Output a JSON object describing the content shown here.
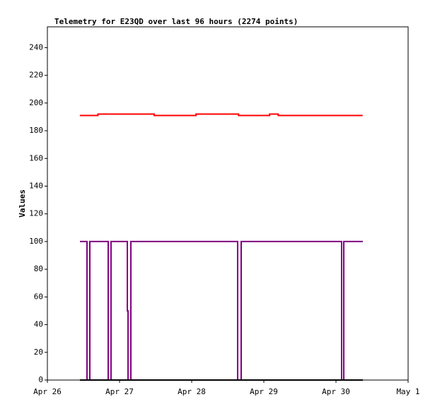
{
  "chart_data": {
    "type": "line",
    "title": "Telemetry for E23QD over last 96 hours (2274 points)",
    "y_label": "Values",
    "xlim": [
      0,
      5
    ],
    "xticks": [
      {
        "value": 0,
        "label": "Apr 26"
      },
      {
        "value": 1,
        "label": "Apr 27"
      },
      {
        "value": 2,
        "label": "Apr 28"
      },
      {
        "value": 3,
        "label": "Apr 29"
      },
      {
        "value": 4,
        "label": "Apr 30"
      },
      {
        "value": 5,
        "label": "May 1"
      }
    ],
    "ylim": [
      0,
      255
    ],
    "yticks": [
      0,
      20,
      40,
      60,
      80,
      100,
      120,
      140,
      160,
      180,
      200,
      220,
      240
    ],
    "series": [
      {
        "color": "#ff0000",
        "x": [
          0.45,
          0.7,
          0.7,
          1.0,
          1.0,
          1.48,
          1.48,
          2.06,
          2.06,
          2.65,
          2.65,
          3.08,
          3.08,
          3.2,
          3.2,
          4.37
        ],
        "values": [
          191,
          191,
          192,
          192,
          192,
          192,
          191,
          191,
          192,
          192,
          191,
          191,
          192,
          192,
          191,
          191
        ]
      },
      {
        "color": "#800080",
        "x": [
          0.451,
          0.549,
          0.549,
          0.588,
          0.588,
          0.843,
          0.843,
          0.882,
          0.882,
          1.108,
          1.108,
          1.118,
          1.118,
          1.157,
          1.157,
          2.637,
          2.637,
          2.686,
          2.686,
          4.078,
          4.078,
          4.108,
          4.108,
          4.373
        ],
        "values": [
          100,
          100,
          0,
          0,
          100,
          100,
          0,
          0,
          100,
          100,
          50,
          50,
          0,
          0,
          100,
          100,
          0,
          0,
          100,
          100,
          0,
          0,
          100,
          100
        ]
      },
      {
        "color": "#000000",
        "x": [
          0.451,
          4.373
        ],
        "values": [
          0,
          0
        ]
      }
    ]
  }
}
